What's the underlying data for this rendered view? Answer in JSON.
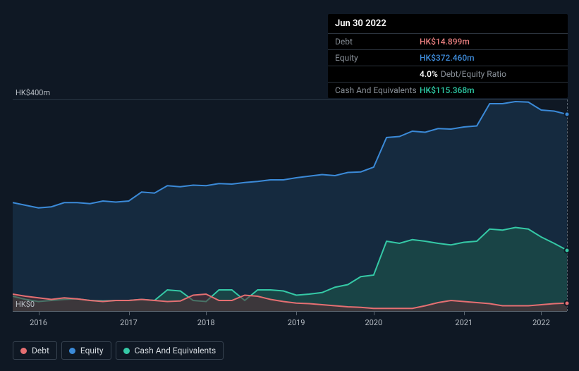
{
  "chart": {
    "type": "area",
    "background_color": "#0f1824",
    "ylim": [
      0,
      400
    ],
    "ytick_labels": {
      "top": "HK$400m",
      "bottom": "HK$0"
    },
    "gridline_color": "#2b3845",
    "zeroline_color": "#5a646f",
    "x_categories": [
      "2016",
      "2017",
      "2018",
      "2019",
      "2020",
      "2021",
      "2022"
    ],
    "series": {
      "equity": {
        "label": "Equity",
        "line_color": "#3b8ad8",
        "fill_color": "#1c3a55",
        "fill_opacity": 0.55,
        "values": [
          205,
          200,
          195,
          197,
          205,
          205,
          203,
          208,
          206,
          208,
          225,
          223,
          237,
          235,
          238,
          237,
          241,
          240,
          243,
          245,
          248,
          248,
          252,
          255,
          258,
          256,
          262,
          263,
          272,
          328,
          330,
          340,
          338,
          345,
          344,
          348,
          350,
          392,
          392,
          396,
          395,
          380,
          378,
          372
        ]
      },
      "cash": {
        "label": "Cash And Equivalents",
        "line_color": "#35c9a6",
        "fill_color": "#1e5a4d",
        "fill_opacity": 0.55,
        "values": [
          28,
          22,
          18,
          20,
          22,
          23,
          20,
          19,
          20,
          20,
          22,
          20,
          40,
          38,
          20,
          18,
          40,
          40,
          20,
          40,
          40,
          38,
          30,
          32,
          35,
          45,
          50,
          65,
          68,
          132,
          128,
          135,
          132,
          128,
          125,
          130,
          132,
          155,
          153,
          158,
          155,
          140,
          128,
          115
        ]
      },
      "debt": {
        "label": "Debt",
        "line_color": "#e56f72",
        "fill_color": "#5a2e33",
        "fill_opacity": 0.55,
        "values": [
          32,
          28,
          25,
          22,
          25,
          23,
          20,
          18,
          20,
          20,
          22,
          20,
          18,
          19,
          30,
          32,
          20,
          20,
          30,
          28,
          22,
          18,
          15,
          14,
          12,
          10,
          8,
          7,
          5,
          5,
          5,
          5,
          10,
          16,
          20,
          18,
          16,
          14,
          10,
          10,
          10,
          12,
          14,
          15
        ]
      }
    },
    "cursor_index": 43,
    "legend_order": [
      "debt",
      "equity",
      "cash"
    ]
  },
  "tooltip": {
    "date": "Jun 30 2022",
    "rows": {
      "debt": {
        "label": "Debt",
        "value": "HK$14.899m"
      },
      "equity": {
        "label": "Equity",
        "value": "HK$372.460m"
      },
      "ratio": {
        "num": "4.0%",
        "label": "Debt/Equity Ratio"
      },
      "cash": {
        "label": "Cash And Equivalents",
        "value": "HK$115.368m"
      }
    }
  },
  "axis_label_fontsize": 11,
  "legend_fontsize": 12,
  "tooltip_fontsize": 12
}
